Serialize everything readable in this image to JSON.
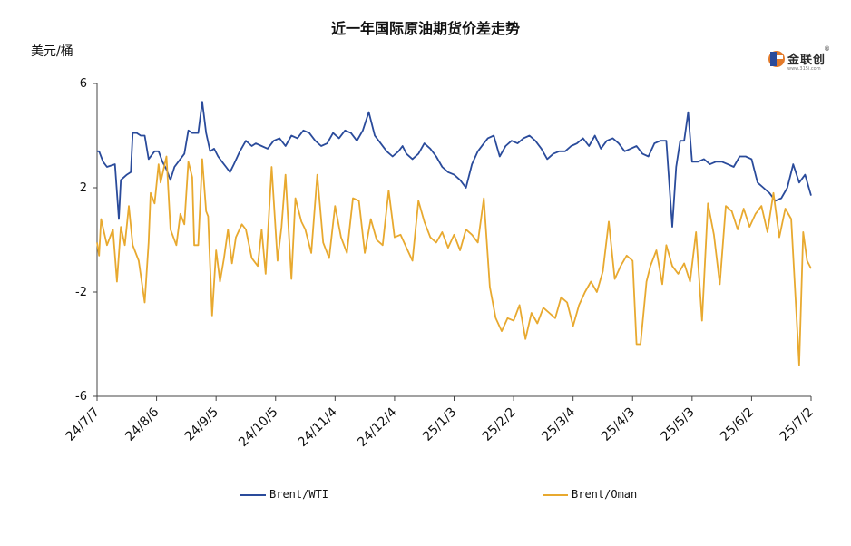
{
  "chart_data": {
    "type": "line",
    "title": "近一年国际原油期货价差走势",
    "ylabel": "美元/桶",
    "xlabel": "",
    "ylim": [
      -6,
      6
    ],
    "yticks": [
      6,
      2,
      -2,
      -6
    ],
    "xlim": [
      "2024-07-07",
      "2025-07-02"
    ],
    "xticks": [
      "24/7/7",
      "24/8/6",
      "24/9/5",
      "24/10/5",
      "24/11/4",
      "24/12/4",
      "25/1/3",
      "25/2/2",
      "25/3/4",
      "25/4/3",
      "25/5/3",
      "25/6/2",
      "25/7/2"
    ],
    "legend_position": "bottom",
    "grid": false,
    "series": [
      {
        "name": "Brent/WTI",
        "color": "#2a4b9b",
        "x": [
          "2024-07-07",
          "2024-07-08",
          "2024-07-10",
          "2024-07-12",
          "2024-07-16",
          "2024-07-18",
          "2024-07-19",
          "2024-07-22",
          "2024-07-24",
          "2024-07-25",
          "2024-07-27",
          "2024-07-29",
          "2024-07-31",
          "2024-08-02",
          "2024-08-05",
          "2024-08-07",
          "2024-08-09",
          "2024-08-11",
          "2024-08-13",
          "2024-08-15",
          "2024-08-17",
          "2024-08-20",
          "2024-08-22",
          "2024-08-24",
          "2024-08-27",
          "2024-08-29",
          "2024-08-31",
          "2024-09-02",
          "2024-09-04",
          "2024-09-06",
          "2024-09-08",
          "2024-09-10",
          "2024-09-12",
          "2024-09-14",
          "2024-09-17",
          "2024-09-20",
          "2024-09-23",
          "2024-09-25",
          "2024-09-28",
          "2024-10-01",
          "2024-10-04",
          "2024-10-07",
          "2024-10-10",
          "2024-10-13",
          "2024-10-16",
          "2024-10-19",
          "2024-10-22",
          "2024-10-25",
          "2024-10-28",
          "2024-10-31",
          "2024-11-03",
          "2024-11-06",
          "2024-11-09",
          "2024-11-12",
          "2024-11-15",
          "2024-11-18",
          "2024-11-21",
          "2024-11-24",
          "2024-11-27",
          "2024-11-30",
          "2024-12-03",
          "2024-12-06",
          "2024-12-08",
          "2024-12-10",
          "2024-12-13",
          "2024-12-16",
          "2024-12-19",
          "2024-12-22",
          "2024-12-25",
          "2024-12-28",
          "2024-12-31",
          "2025-01-03",
          "2025-01-06",
          "2025-01-09",
          "2025-01-12",
          "2025-01-15",
          "2025-01-18",
          "2025-01-20",
          "2025-01-23",
          "2025-01-26",
          "2025-01-29",
          "2025-02-01",
          "2025-02-04",
          "2025-02-07",
          "2025-02-10",
          "2025-02-13",
          "2025-02-16",
          "2025-02-19",
          "2025-02-22",
          "2025-02-25",
          "2025-02-28",
          "2025-03-03",
          "2025-03-06",
          "2025-03-09",
          "2025-03-12",
          "2025-03-15",
          "2025-03-18",
          "2025-03-21",
          "2025-03-24",
          "2025-03-27",
          "2025-03-30",
          "2025-04-02",
          "2025-04-05",
          "2025-04-08",
          "2025-04-11",
          "2025-04-14",
          "2025-04-17",
          "2025-04-20",
          "2025-04-23",
          "2025-04-25",
          "2025-04-27",
          "2025-04-29",
          "2025-05-01",
          "2025-05-03",
          "2025-05-06",
          "2025-05-09",
          "2025-05-12",
          "2025-05-15",
          "2025-05-18",
          "2025-05-21",
          "2025-05-24",
          "2025-05-27",
          "2025-05-30",
          "2025-06-02",
          "2025-06-05",
          "2025-06-08",
          "2025-06-11",
          "2025-06-14",
          "2025-06-17",
          "2025-06-20",
          "2025-06-23",
          "2025-06-26",
          "2025-06-29",
          "2025-07-02"
        ],
        "values": [
          3.4,
          3.4,
          3.0,
          2.8,
          2.9,
          0.8,
          2.3,
          2.5,
          2.6,
          4.1,
          4.1,
          4.0,
          4.0,
          3.1,
          3.4,
          3.4,
          3.0,
          2.7,
          2.3,
          2.8,
          3.0,
          3.3,
          4.2,
          4.1,
          4.1,
          5.3,
          4.1,
          3.4,
          3.5,
          3.2,
          3.0,
          2.8,
          2.6,
          2.9,
          3.4,
          3.8,
          3.6,
          3.7,
          3.6,
          3.5,
          3.8,
          3.9,
          3.6,
          4.0,
          3.9,
          4.2,
          4.1,
          3.8,
          3.6,
          3.7,
          4.1,
          3.9,
          4.2,
          4.1,
          3.8,
          4.2,
          4.9,
          4.0,
          3.7,
          3.4,
          3.2,
          3.4,
          3.6,
          3.3,
          3.1,
          3.3,
          3.7,
          3.5,
          3.2,
          2.8,
          2.6,
          2.5,
          2.3,
          2.0,
          2.9,
          3.4,
          3.7,
          3.9,
          4.0,
          3.2,
          3.6,
          3.8,
          3.7,
          3.9,
          4.0,
          3.8,
          3.5,
          3.1,
          3.3,
          3.4,
          3.4,
          3.6,
          3.7,
          3.9,
          3.6,
          4.0,
          3.5,
          3.8,
          3.9,
          3.7,
          3.4,
          3.5,
          3.6,
          3.3,
          3.2,
          3.7,
          3.8,
          3.8,
          0.5,
          2.8,
          3.8,
          3.8,
          4.9,
          3.0,
          3.0,
          3.1,
          2.9,
          3.0,
          3.0,
          2.9,
          2.8,
          3.2,
          3.2,
          3.1,
          2.2,
          2.0,
          1.8,
          1.5,
          1.6,
          2.0,
          2.9,
          2.2,
          2.5,
          1.7
        ]
      },
      {
        "name": "Brent/Oman",
        "color": "#e8a92f",
        "x": [
          "2024-07-07",
          "2024-07-08",
          "2024-07-09",
          "2024-07-12",
          "2024-07-15",
          "2024-07-17",
          "2024-07-19",
          "2024-07-21",
          "2024-07-23",
          "2024-07-25",
          "2024-07-26",
          "2024-07-28",
          "2024-07-31",
          "2024-08-02",
          "2024-08-03",
          "2024-08-05",
          "2024-08-07",
          "2024-08-08",
          "2024-08-11",
          "2024-08-13",
          "2024-08-16",
          "2024-08-18",
          "2024-08-20",
          "2024-08-22",
          "2024-08-24",
          "2024-08-25",
          "2024-08-27",
          "2024-08-29",
          "2024-08-31",
          "2024-09-01",
          "2024-09-03",
          "2024-09-05",
          "2024-09-07",
          "2024-09-09",
          "2024-09-11",
          "2024-09-13",
          "2024-09-15",
          "2024-09-18",
          "2024-09-20",
          "2024-09-23",
          "2024-09-26",
          "2024-09-28",
          "2024-09-30",
          "2024-10-03",
          "2024-10-06",
          "2024-10-08",
          "2024-10-10",
          "2024-10-13",
          "2024-10-15",
          "2024-10-18",
          "2024-10-20",
          "2024-10-23",
          "2024-10-26",
          "2024-10-29",
          "2024-11-01",
          "2024-11-04",
          "2024-11-07",
          "2024-11-10",
          "2024-11-13",
          "2024-11-16",
          "2024-11-19",
          "2024-11-22",
          "2024-11-25",
          "2024-11-28",
          "2024-12-01",
          "2024-12-04",
          "2024-12-07",
          "2024-12-10",
          "2024-12-13",
          "2024-12-16",
          "2024-12-19",
          "2024-12-22",
          "2024-12-25",
          "2024-12-28",
          "2024-12-31",
          "2025-01-03",
          "2025-01-06",
          "2025-01-09",
          "2025-01-12",
          "2025-01-15",
          "2025-01-18",
          "2025-01-21",
          "2025-01-24",
          "2025-01-27",
          "2025-01-30",
          "2025-02-02",
          "2025-02-05",
          "2025-02-08",
          "2025-02-11",
          "2025-02-14",
          "2025-02-17",
          "2025-02-20",
          "2025-02-23",
          "2025-02-26",
          "2025-03-01",
          "2025-03-04",
          "2025-03-07",
          "2025-03-10",
          "2025-03-13",
          "2025-03-16",
          "2025-03-19",
          "2025-03-22",
          "2025-03-25",
          "2025-03-28",
          "2025-03-31",
          "2025-04-03",
          "2025-04-05",
          "2025-04-07",
          "2025-04-10",
          "2025-04-12",
          "2025-04-15",
          "2025-04-18",
          "2025-04-20",
          "2025-04-23",
          "2025-04-26",
          "2025-04-29",
          "2025-05-02",
          "2025-05-05",
          "2025-05-08",
          "2025-05-11",
          "2025-05-14",
          "2025-05-17",
          "2025-05-20",
          "2025-05-23",
          "2025-05-26",
          "2025-05-29",
          "2025-06-01",
          "2025-06-04",
          "2025-06-07",
          "2025-06-10",
          "2025-06-13",
          "2025-06-16",
          "2025-06-19",
          "2025-06-22",
          "2025-06-24",
          "2025-06-26",
          "2025-06-28",
          "2025-06-30",
          "2025-07-02"
        ],
        "values": [
          -0.1,
          -0.6,
          0.8,
          -0.2,
          0.4,
          -1.6,
          0.5,
          -0.2,
          1.3,
          -0.2,
          -0.4,
          -0.8,
          -2.4,
          -0.1,
          1.8,
          1.4,
          2.9,
          2.2,
          3.2,
          0.4,
          -0.2,
          1.0,
          0.6,
          3.0,
          2.4,
          -0.2,
          -0.2,
          3.1,
          1.1,
          0.9,
          -2.9,
          -0.4,
          -1.6,
          -0.7,
          0.4,
          -0.9,
          0.1,
          0.6,
          0.4,
          -0.7,
          -1.0,
          0.4,
          -1.3,
          2.8,
          -0.8,
          0.5,
          2.5,
          -1.5,
          1.6,
          0.7,
          0.4,
          -0.5,
          2.5,
          -0.1,
          -0.7,
          1.3,
          0.1,
          -0.5,
          1.6,
          1.5,
          -0.5,
          0.8,
          0.0,
          -0.2,
          1.9,
          0.1,
          0.2,
          -0.3,
          -0.8,
          1.5,
          0.7,
          0.1,
          -0.1,
          0.3,
          -0.3,
          0.2,
          -0.4,
          0.4,
          0.2,
          -0.1,
          1.6,
          -1.8,
          -3.0,
          -3.5,
          -3.0,
          -3.1,
          -2.5,
          -3.8,
          -2.8,
          -3.2,
          -2.6,
          -2.8,
          -3.0,
          -2.2,
          -2.4,
          -3.3,
          -2.5,
          -2.0,
          -1.6,
          -2.0,
          -1.2,
          0.7,
          -1.5,
          -1.0,
          -0.6,
          -0.8,
          -4.0,
          -4.0,
          -1.6,
          -1.0,
          -0.4,
          -1.7,
          -0.2,
          -1.0,
          -1.3,
          -0.9,
          -1.6,
          0.3,
          -3.1,
          1.4,
          0.2,
          -1.7,
          1.3,
          1.1,
          0.4,
          1.2,
          0.5,
          1.0,
          1.3,
          0.3,
          1.8,
          0.1,
          1.2,
          0.8,
          -2.0,
          -4.8,
          0.3,
          -0.8,
          -1.1
        ]
      }
    ]
  }
}
